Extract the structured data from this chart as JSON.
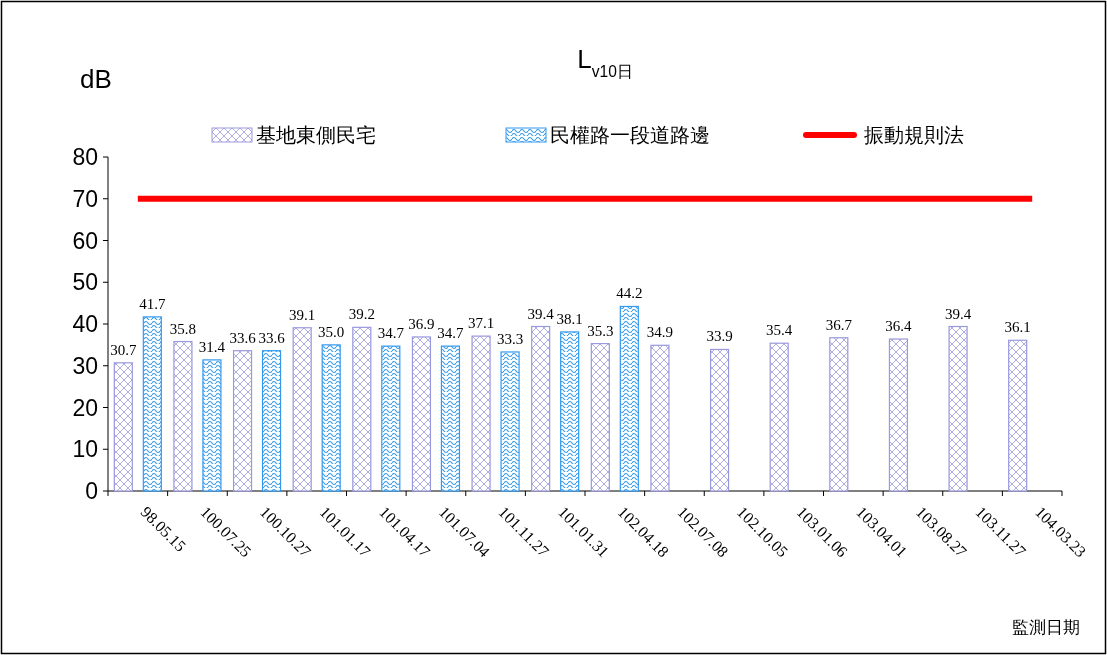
{
  "chart_data": {
    "type": "bar",
    "title": "L$_{v10日}$",
    "ylabel": "dB",
    "xlabel": "監測日期",
    "categories": [
      "98.05.15",
      "100.07.25",
      "100.10.27",
      "101.01.17",
      "101.04.17",
      "101.07.04",
      "101.11.27",
      "101.01.31",
      "102.04.18",
      "102.07.08",
      "102.10.05",
      "103.01.06",
      "103.04.01",
      "103.08.27",
      "103.11.27",
      "104.03.23"
    ],
    "series": [
      {
        "name": "基地東側民宅",
        "color": "#9999dd",
        "values": [
          30.7,
          35.8,
          33.6,
          39.1,
          39.2,
          36.9,
          37.1,
          39.4,
          35.3,
          34.9,
          33.9,
          35.4,
          36.7,
          36.4,
          39.4,
          36.1
        ],
        "value_labels": [
          "30.7",
          "35.8",
          "33.6",
          "39.1",
          "39.2",
          "36.9",
          "37.1",
          "39.4",
          "35.3",
          "34.9",
          "33.9",
          "35.4",
          "36.7",
          "36.4",
          "39.4",
          "36.1"
        ]
      },
      {
        "name": "民權路一段道路邊",
        "color": "#3399ee",
        "values": [
          41.7,
          31.4,
          33.6,
          35.0,
          34.7,
          34.7,
          33.3,
          38.1,
          44.2,
          null,
          null,
          null,
          null,
          null,
          null,
          null
        ],
        "value_labels": [
          "41.7",
          "31.4",
          "33.6",
          "35.0",
          "34.7",
          "34.7",
          "33.3",
          "38.1",
          "44.2",
          null,
          null,
          null,
          null,
          null,
          null,
          null
        ]
      },
      {
        "name": "振動規則法",
        "type": "line",
        "color": "#ff0000",
        "values": [
          70,
          70,
          70,
          70,
          70,
          70,
          70,
          70,
          70,
          70,
          70,
          70,
          70,
          70,
          70,
          70
        ]
      }
    ],
    "ylim": [
      0,
      80
    ],
    "yticks": [
      0,
      10,
      20,
      30,
      40,
      50,
      60,
      70,
      80
    ],
    "legend": "top",
    "grid": false
  }
}
